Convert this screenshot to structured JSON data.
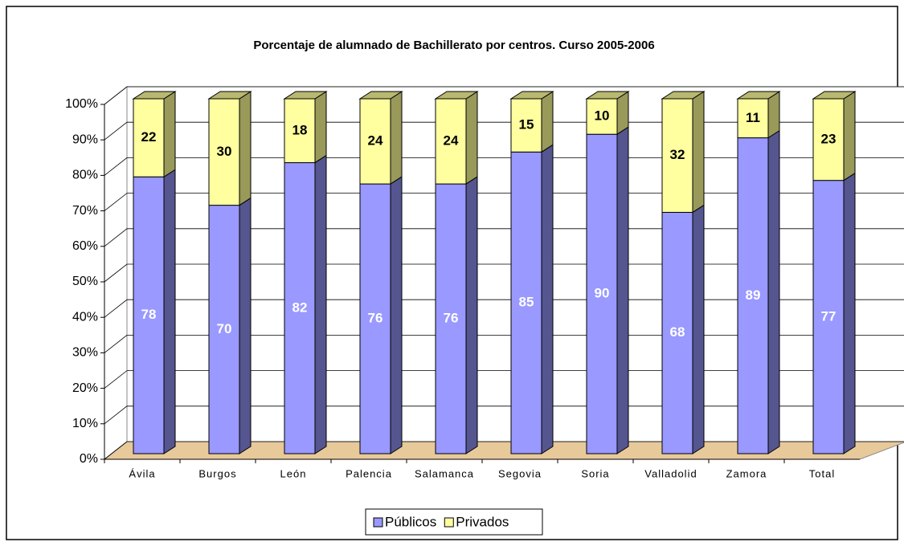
{
  "chart_data": {
    "type": "bar",
    "stacked": true,
    "title": "Porcentaje de alumnado de Bachillerato  por centros. Curso 2005-2006",
    "categories": [
      "Ávila",
      "Burgos",
      "León",
      "Palencia",
      "Salamanca",
      "Segovia",
      "Soria",
      "Valladolid",
      "Zamora",
      "Total"
    ],
    "series": [
      {
        "name": "Públicos",
        "color": "#9999ff",
        "values": [
          78,
          70,
          82,
          76,
          76,
          85,
          90,
          68,
          89,
          77
        ]
      },
      {
        "name": "Privados",
        "color": "#ffffa0",
        "values": [
          22,
          30,
          18,
          24,
          24,
          15,
          10,
          32,
          11,
          23
        ]
      }
    ],
    "ylim": [
      0,
      100
    ],
    "yticks": [
      {
        "value": 0,
        "label": "0%"
      },
      {
        "value": 10,
        "label": "10%"
      },
      {
        "value": 20,
        "label": "20%"
      },
      {
        "value": 30,
        "label": "30%"
      },
      {
        "value": 40,
        "label": "40%"
      },
      {
        "value": 50,
        "label": "50%"
      },
      {
        "value": 60,
        "label": "60%"
      },
      {
        "value": 70,
        "label": "70%"
      },
      {
        "value": 80,
        "label": "80%"
      },
      {
        "value": 90,
        "label": "90%"
      },
      {
        "value": 100,
        "label": "100%"
      }
    ],
    "grid": true,
    "legend": "bottom"
  }
}
